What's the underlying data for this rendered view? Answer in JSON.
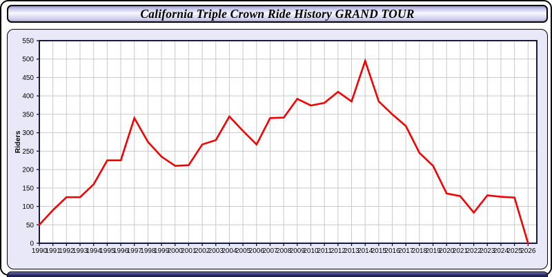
{
  "header": {
    "title": "California Triple Crown Ride History GRAND TOUR"
  },
  "chart": {
    "y_axis_label": "Riders",
    "colors": {
      "line": "#f40000",
      "grid": "#c9c9c9",
      "plot_border": "#18183c",
      "plot_background": "#ffffff",
      "panel_background": "#e8e8f8",
      "axis_text": "#000000"
    }
  },
  "chart_data": {
    "type": "line",
    "title": "California Triple Crown Ride History GRAND TOUR",
    "xlabel": "",
    "ylabel": "Riders",
    "legend": "none",
    "grid": true,
    "ylim": [
      0,
      550
    ],
    "y_ticks": [
      0,
      50,
      100,
      150,
      200,
      250,
      300,
      350,
      400,
      450,
      500,
      550
    ],
    "x": [
      1990,
      1991,
      1992,
      1993,
      1994,
      1995,
      1996,
      1997,
      1998,
      1999,
      2000,
      2001,
      2002,
      2003,
      2004,
      2005,
      2006,
      2007,
      2008,
      2009,
      2010,
      2011,
      2012,
      2013,
      2014,
      2015,
      2016,
      2017,
      2018,
      2019,
      2020,
      2021,
      2022,
      2023,
      2024,
      2025,
      2026
    ],
    "values": [
      50,
      90,
      125,
      125,
      160,
      225,
      225,
      340,
      275,
      235,
      210,
      212,
      268,
      280,
      344,
      305,
      268,
      340,
      341,
      392,
      374,
      381,
      411,
      385,
      495,
      385,
      350,
      318,
      245,
      210,
      135,
      128,
      83,
      130,
      126,
      124,
      0
    ],
    "line_color": "#f40000"
  }
}
